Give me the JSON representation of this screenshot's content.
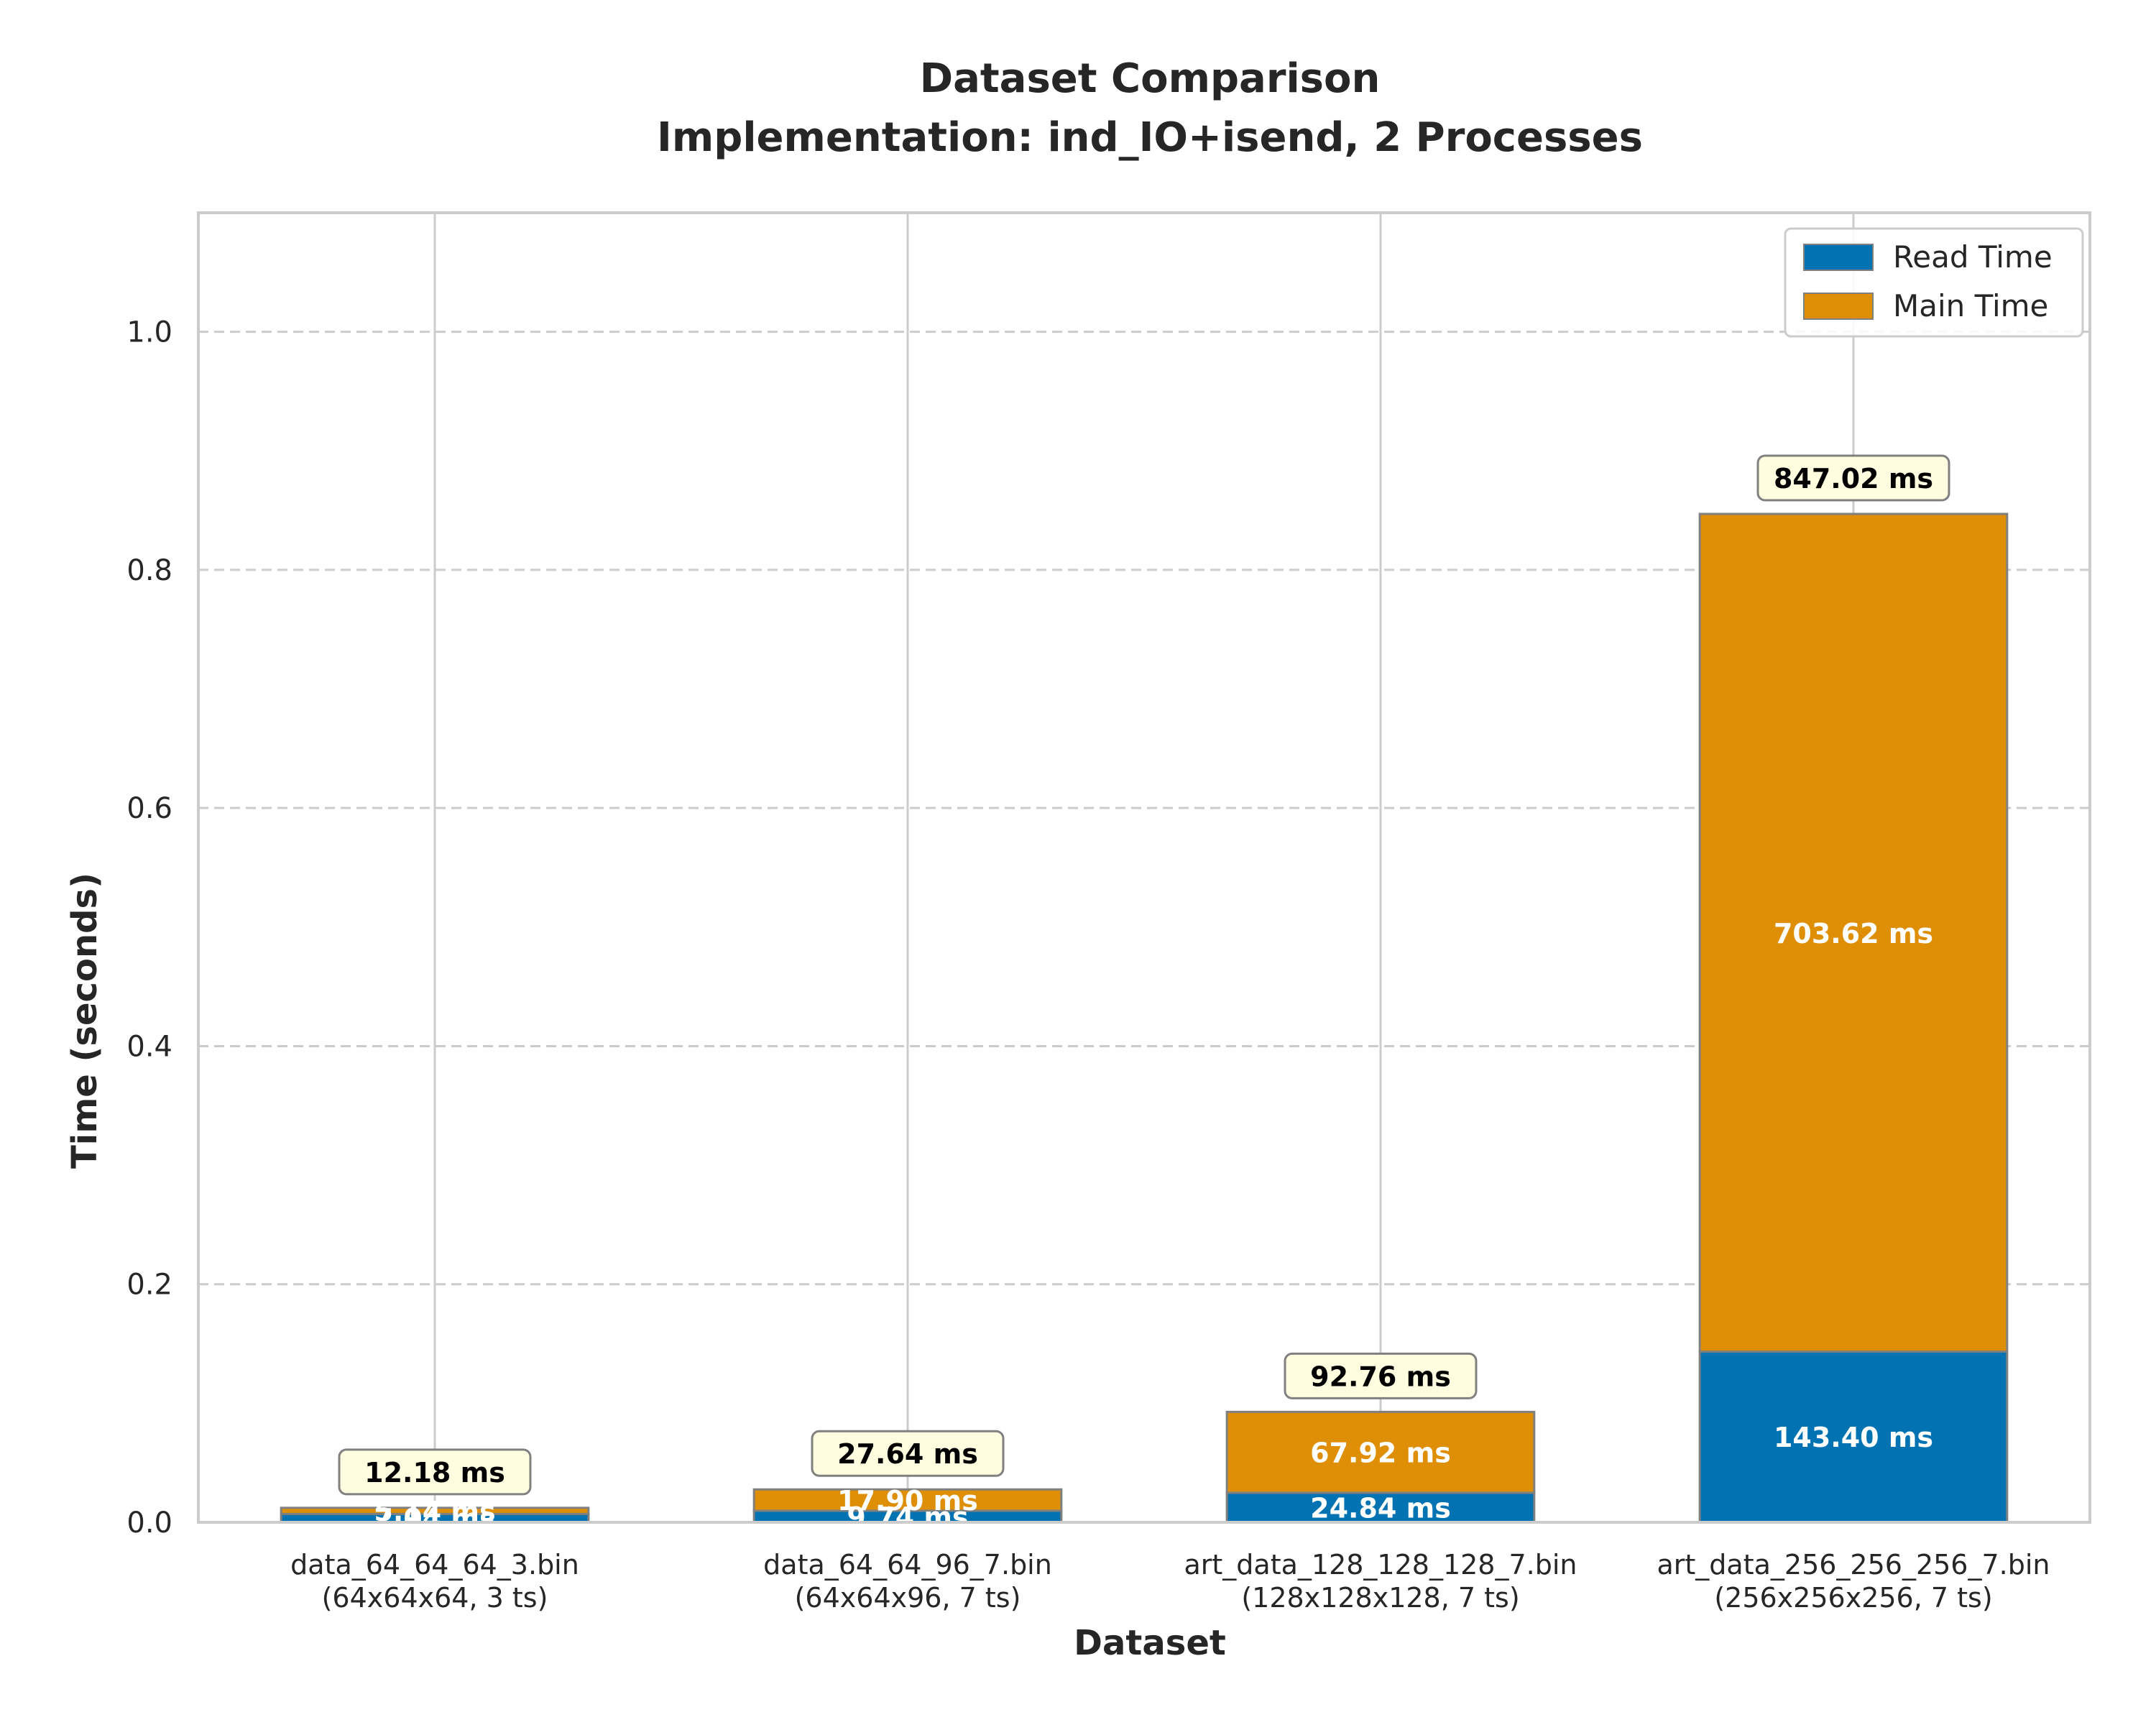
{
  "chart_data": {
    "type": "bar",
    "stacked": true,
    "title": "Dataset Comparison",
    "subtitle": "Implementation: ind_IO+isend, 2 Processes",
    "xlabel": "Dataset",
    "ylabel": "Time (seconds)",
    "ylim": [
      0,
      1.1
    ],
    "yticks": [
      "0.0",
      "0.2",
      "0.4",
      "0.6",
      "0.8",
      "1.0"
    ],
    "ytick_values": [
      0,
      0.2,
      0.4,
      0.6,
      0.8,
      1.0
    ],
    "grid": true,
    "legend_position": "top-right",
    "categories": [
      [
        "data_64_64_64_3.bin",
        "(64x64x64, 3 ts)"
      ],
      [
        "data_64_64_96_7.bin",
        "(64x64x96, 7 ts)"
      ],
      [
        "art_data_128_128_128_7.bin",
        "(128x128x128, 7 ts)"
      ],
      [
        "art_data_256_256_256_7.bin",
        "(256x256x256, 7 ts)"
      ]
    ],
    "series": [
      {
        "name": "Read Time",
        "color": "#0173b2",
        "values": [
          0.00704,
          0.00974,
          0.02484,
          0.1434
        ],
        "labels": [
          "7.04 ms",
          "9.74 ms",
          "24.84 ms",
          "143.40 ms"
        ]
      },
      {
        "name": "Main Time",
        "color": "#de8f05",
        "values": [
          0.00514,
          0.0179,
          0.06792,
          0.70362
        ],
        "labels": [
          "5.14 ms",
          "17.90 ms",
          "67.92 ms",
          "703.62 ms"
        ]
      }
    ],
    "totals": {
      "values": [
        0.01218,
        0.02764,
        0.09276,
        0.84702
      ],
      "labels": [
        "12.18 ms",
        "27.64 ms",
        "92.76 ms",
        "847.02 ms"
      ]
    }
  }
}
